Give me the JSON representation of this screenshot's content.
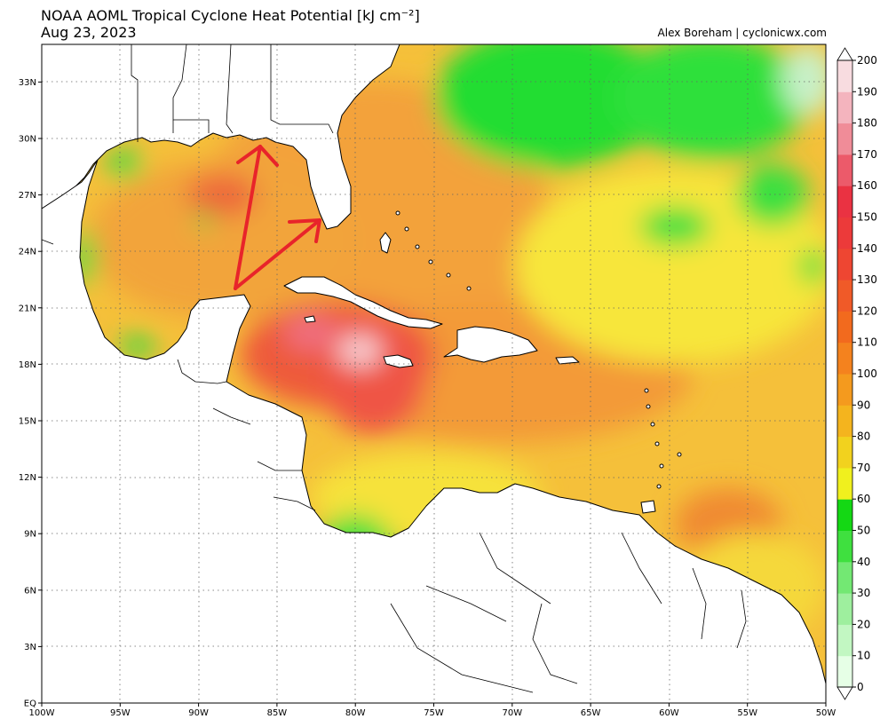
{
  "header": {
    "title": "NOAA AOML Tropical Cyclone Heat Potential [kJ cm⁻²]",
    "date": "Aug 23, 2023",
    "credit": "Alex Boreham | cyclonicwx.com"
  },
  "map": {
    "lon_range": [
      -100,
      -50
    ],
    "lat_range": [
      0,
      35
    ],
    "lon_ticks": [
      {
        "value": -100,
        "label": "100W"
      },
      {
        "value": -95,
        "label": "95W"
      },
      {
        "value": -90,
        "label": "90W"
      },
      {
        "value": -85,
        "label": "85W"
      },
      {
        "value": -80,
        "label": "80W"
      },
      {
        "value": -75,
        "label": "75W"
      },
      {
        "value": -70,
        "label": "70W"
      },
      {
        "value": -65,
        "label": "65W"
      },
      {
        "value": -60,
        "label": "60W"
      },
      {
        "value": -55,
        "label": "55W"
      },
      {
        "value": -50,
        "label": "50W"
      }
    ],
    "lat_ticks": [
      {
        "value": 0,
        "label": "EQ"
      },
      {
        "value": 3,
        "label": "3N"
      },
      {
        "value": 6,
        "label": "6N"
      },
      {
        "value": 9,
        "label": "9N"
      },
      {
        "value": 12,
        "label": "12N"
      },
      {
        "value": 15,
        "label": "15N"
      },
      {
        "value": 18,
        "label": "18N"
      },
      {
        "value": 21,
        "label": "21N"
      },
      {
        "value": 24,
        "label": "24N"
      },
      {
        "value": 27,
        "label": "27N"
      },
      {
        "value": 30,
        "label": "30N"
      },
      {
        "value": 33,
        "label": "33N"
      }
    ],
    "arrow_color": "#e8242a",
    "ocean_base_color": "#f7c92e"
  },
  "colorbar": {
    "labels": [
      "0",
      "10",
      "20",
      "30",
      "40",
      "50",
      "60",
      "70",
      "80",
      "90",
      "100",
      "110",
      "120",
      "130",
      "140",
      "150",
      "160",
      "170",
      "180",
      "190",
      "200"
    ],
    "colors": [
      "#e6ffe6",
      "#c2f7c2",
      "#9eef9e",
      "#73e873",
      "#3fe03f",
      "#14d814",
      "#f0f01e",
      "#f2d21e",
      "#f4b41e",
      "#f49a1e",
      "#f4821e",
      "#f26a1e",
      "#f05a28",
      "#ee4632",
      "#ec3a3a",
      "#ea3242",
      "#ec5a6a",
      "#f08c98",
      "#f4b4be",
      "#f8dce0"
    ]
  }
}
